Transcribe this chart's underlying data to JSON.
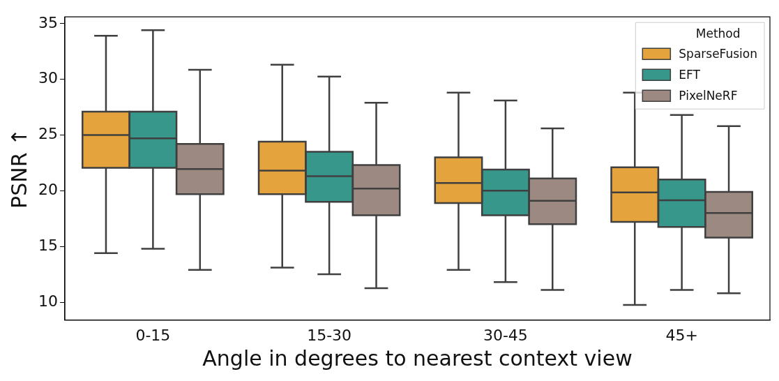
{
  "chart_data": {
    "type": "box",
    "xlabel": "Angle in degrees to nearest context view",
    "ylabel": "PSNR ↑",
    "categories": [
      "0-15",
      "15-30",
      "30-45",
      "45+"
    ],
    "ylim": [
      8.4,
      35.6
    ],
    "yticks": [
      10,
      15,
      20,
      25,
      30,
      35
    ],
    "grid": false,
    "legend": "top right",
    "legend_title": "Method",
    "series": [
      {
        "name": "SparseFusion",
        "color": "#e5a33e",
        "boxes": [
          {
            "low": 14.4,
            "q1": 22.05,
            "median": 25.0,
            "q3": 27.1,
            "high": 33.9
          },
          {
            "low": 13.1,
            "q1": 19.7,
            "median": 21.8,
            "q3": 24.4,
            "high": 31.3
          },
          {
            "low": 12.9,
            "q1": 18.9,
            "median": 20.7,
            "q3": 23.0,
            "high": 28.8
          },
          {
            "low": 9.75,
            "q1": 17.2,
            "median": 19.85,
            "q3": 22.1,
            "high": 28.8
          }
        ]
      },
      {
        "name": "EFT",
        "color": "#36978a",
        "boxes": [
          {
            "low": 14.8,
            "q1": 22.05,
            "median": 24.7,
            "q3": 27.1,
            "high": 34.4
          },
          {
            "low": 12.5,
            "q1": 19.0,
            "median": 21.3,
            "q3": 23.5,
            "high": 30.25
          },
          {
            "low": 11.8,
            "q1": 17.8,
            "median": 20.0,
            "q3": 21.9,
            "high": 28.1
          },
          {
            "low": 11.1,
            "q1": 16.75,
            "median": 19.15,
            "q3": 21.0,
            "high": 26.8
          }
        ]
      },
      {
        "name": "PixelNeRF",
        "color": "#9c8981",
        "boxes": [
          {
            "low": 12.9,
            "q1": 19.7,
            "median": 21.95,
            "q3": 24.2,
            "high": 30.85
          },
          {
            "low": 11.25,
            "q1": 17.8,
            "median": 20.2,
            "q3": 22.3,
            "high": 27.9
          },
          {
            "low": 11.1,
            "q1": 17.0,
            "median": 19.1,
            "q3": 21.1,
            "high": 25.6
          },
          {
            "low": 10.8,
            "q1": 15.8,
            "median": 18.0,
            "q3": 19.9,
            "high": 25.8
          }
        ]
      }
    ]
  }
}
